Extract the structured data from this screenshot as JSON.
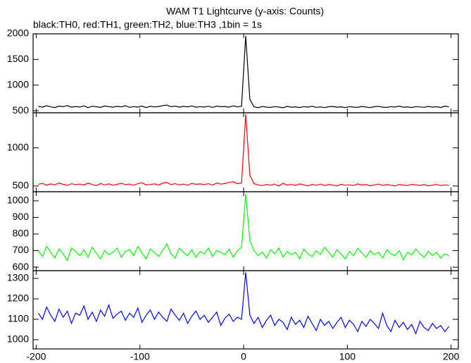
{
  "title": "WAM T1 Lightcurve (y-axis: Counts)",
  "subtitle": "black:TH0, red:TH1, green:TH2, blue:TH3 ,1bin = 1s",
  "chart_data": [
    {
      "type": "line",
      "color": "#000000",
      "xlim": [
        -203,
        207
      ],
      "ylim": [
        460,
        2000
      ],
      "xticks": [
        -200,
        -100,
        0,
        100,
        200
      ],
      "yticks": [
        500,
        1000,
        1500,
        2000
      ],
      "x": [
        -198,
        -194,
        -190,
        -186,
        -182,
        -178,
        -174,
        -170,
        -166,
        -162,
        -158,
        -154,
        -150,
        -146,
        -142,
        -138,
        -134,
        -130,
        -126,
        -122,
        -118,
        -114,
        -110,
        -106,
        -102,
        -98,
        -94,
        -90,
        -86,
        -82,
        -78,
        -74,
        -70,
        -66,
        -62,
        -58,
        -54,
        -50,
        -46,
        -42,
        -38,
        -34,
        -30,
        -26,
        -22,
        -18,
        -14,
        -10,
        -6,
        -2,
        2,
        6,
        10,
        14,
        18,
        22,
        26,
        30,
        34,
        38,
        42,
        46,
        50,
        54,
        58,
        62,
        66,
        70,
        74,
        78,
        82,
        86,
        90,
        94,
        98,
        102,
        106,
        110,
        114,
        118,
        122,
        126,
        130,
        134,
        138,
        142,
        146,
        150,
        154,
        158,
        162,
        166,
        170,
        174,
        178,
        182,
        186,
        190,
        194,
        198
      ],
      "values": [
        585,
        570,
        598,
        575,
        562,
        590,
        578,
        600,
        568,
        583,
        572,
        595,
        560,
        588,
        577,
        565,
        592,
        580,
        570,
        585,
        575,
        598,
        566,
        580,
        572,
        590,
        562,
        586,
        574,
        582,
        600,
        610,
        578,
        590,
        570,
        585,
        576,
        595,
        568,
        580,
        572,
        588,
        565,
        590,
        578,
        582,
        570,
        595,
        575,
        588,
        1960,
        720,
        575,
        560,
        582,
        570,
        565,
        580,
        572,
        558,
        585,
        568,
        576,
        562,
        580,
        570,
        588,
        566,
        574,
        560,
        578,
        584,
        568,
        575,
        562,
        580,
        570,
        565,
        584,
        572,
        560,
        578,
        586,
        570,
        565,
        580,
        572,
        590,
        568,
        576,
        562,
        580,
        574,
        566,
        585,
        570,
        578,
        562,
        590,
        575
      ]
    },
    {
      "type": "line",
      "color": "#ff0000",
      "xlim": [
        -203,
        207
      ],
      "ylim": [
        425,
        1460
      ],
      "xticks": [
        -200,
        -100,
        0,
        100,
        200
      ],
      "yticks": [
        500,
        1000
      ],
      "x": [
        -198,
        -194,
        -190,
        -186,
        -182,
        -178,
        -174,
        -170,
        -166,
        -162,
        -158,
        -154,
        -150,
        -146,
        -142,
        -138,
        -134,
        -130,
        -126,
        -122,
        -118,
        -114,
        -110,
        -106,
        -102,
        -98,
        -94,
        -90,
        -86,
        -82,
        -78,
        -74,
        -70,
        -66,
        -62,
        -58,
        -54,
        -50,
        -46,
        -42,
        -38,
        -34,
        -30,
        -26,
        -22,
        -18,
        -14,
        -10,
        -6,
        -2,
        2,
        6,
        10,
        14,
        18,
        22,
        26,
        30,
        34,
        38,
        42,
        46,
        50,
        54,
        58,
        62,
        66,
        70,
        74,
        78,
        82,
        86,
        90,
        94,
        98,
        102,
        106,
        110,
        114,
        118,
        122,
        126,
        130,
        134,
        138,
        142,
        146,
        150,
        154,
        158,
        162,
        166,
        170,
        174,
        178,
        182,
        186,
        190,
        194,
        198
      ],
      "values": [
        520,
        535,
        510,
        528,
        515,
        540,
        522,
        508,
        530,
        518,
        525,
        512,
        538,
        520,
        505,
        532,
        515,
        528,
        510,
        522,
        535,
        518,
        525,
        510,
        530,
        542,
        515,
        520,
        528,
        512,
        538,
        545,
        520,
        530,
        515,
        525,
        510,
        535,
        522,
        528,
        518,
        530,
        512,
        540,
        525,
        532,
        548,
        555,
        530,
        540,
        1440,
        640,
        530,
        515,
        505,
        520,
        510,
        525,
        500,
        535,
        512,
        520,
        508,
        528,
        515,
        502,
        520,
        510,
        525,
        505,
        518,
        512,
        500,
        522,
        510,
        515,
        505,
        528,
        512,
        520,
        502,
        515,
        525,
        508,
        518,
        510,
        500,
        520,
        512,
        505,
        522,
        515,
        508,
        518,
        502,
        512,
        520,
        505,
        515,
        508
      ]
    },
    {
      "type": "line",
      "color": "#00ff00",
      "xlim": [
        -203,
        207
      ],
      "ylim": [
        579,
        1055
      ],
      "xticks": [
        -200,
        -100,
        0,
        100,
        200
      ],
      "yticks": [
        600,
        700,
        800,
        900,
        1000
      ],
      "x": [
        -198,
        -194,
        -190,
        -186,
        -182,
        -178,
        -174,
        -170,
        -166,
        -162,
        -158,
        -154,
        -150,
        -146,
        -142,
        -138,
        -134,
        -130,
        -126,
        -122,
        -118,
        -114,
        -110,
        -106,
        -102,
        -98,
        -94,
        -90,
        -86,
        -82,
        -78,
        -74,
        -70,
        -66,
        -62,
        -58,
        -54,
        -50,
        -46,
        -42,
        -38,
        -34,
        -30,
        -26,
        -22,
        -18,
        -14,
        -10,
        -6,
        -2,
        2,
        6,
        10,
        14,
        18,
        22,
        26,
        30,
        34,
        38,
        42,
        46,
        50,
        54,
        58,
        62,
        66,
        70,
        74,
        78,
        82,
        86,
        90,
        94,
        98,
        102,
        106,
        110,
        114,
        118,
        122,
        126,
        130,
        134,
        138,
        142,
        146,
        150,
        154,
        158,
        162,
        166,
        170,
        174,
        178,
        182,
        186,
        190,
        194,
        198
      ],
      "values": [
        700,
        665,
        725,
        690,
        655,
        710,
        680,
        640,
        715,
        695,
        670,
        705,
        660,
        720,
        685,
        650,
        700,
        675,
        690,
        715,
        660,
        695,
        705,
        670,
        725,
        685,
        650,
        710,
        690,
        665,
        700,
        740,
        680,
        655,
        715,
        690,
        670,
        705,
        660,
        695,
        680,
        715,
        665,
        700,
        690,
        675,
        710,
        660,
        700,
        720,
        1040,
        760,
        700,
        670,
        690,
        655,
        705,
        680,
        715,
        660,
        695,
        675,
        690,
        650,
        710,
        680,
        665,
        700,
        675,
        720,
        690,
        660,
        705,
        680,
        650,
        695,
        670,
        715,
        685,
        660,
        700,
        675,
        690,
        655,
        705,
        680,
        670,
        700,
        645,
        690,
        675,
        710,
        680,
        660,
        695,
        670,
        690,
        655,
        680,
        670
      ]
    },
    {
      "type": "line",
      "color": "#0000ff",
      "xlim": [
        -203,
        207
      ],
      "ylim": [
        955,
        1338
      ],
      "xticks": [
        -200,
        -100,
        0,
        100,
        200
      ],
      "yticks": [
        1000,
        1100,
        1200,
        1300
      ],
      "x": [
        -198,
        -194,
        -190,
        -186,
        -182,
        -178,
        -174,
        -170,
        -166,
        -162,
        -158,
        -154,
        -150,
        -146,
        -142,
        -138,
        -134,
        -130,
        -126,
        -122,
        -118,
        -114,
        -110,
        -106,
        -102,
        -98,
        -94,
        -90,
        -86,
        -82,
        -78,
        -74,
        -70,
        -66,
        -62,
        -58,
        -54,
        -50,
        -46,
        -42,
        -38,
        -34,
        -30,
        -26,
        -22,
        -18,
        -14,
        -10,
        -6,
        -2,
        2,
        6,
        10,
        14,
        18,
        22,
        26,
        30,
        34,
        38,
        42,
        46,
        50,
        54,
        58,
        62,
        66,
        70,
        74,
        78,
        82,
        86,
        90,
        94,
        98,
        102,
        106,
        110,
        114,
        118,
        122,
        126,
        130,
        134,
        138,
        142,
        146,
        150,
        154,
        158,
        162,
        166,
        170,
        174,
        178,
        182,
        186,
        190,
        194,
        198
      ],
      "values": [
        1130,
        1100,
        1160,
        1120,
        1090,
        1150,
        1110,
        1140,
        1080,
        1130,
        1120,
        1165,
        1100,
        1135,
        1090,
        1145,
        1115,
        1170,
        1105,
        1125,
        1140,
        1095,
        1130,
        1110,
        1155,
        1085,
        1120,
        1145,
        1100,
        1135,
        1110,
        1090,
        1150,
        1120,
        1095,
        1130,
        1080,
        1115,
        1140,
        1100,
        1120,
        1085,
        1110,
        1135,
        1070,
        1105,
        1125,
        1090,
        1110,
        1100,
        1330,
        1120,
        1080,
        1110,
        1060,
        1095,
        1120,
        1070,
        1100,
        1085,
        1050,
        1110,
        1075,
        1095,
        1060,
        1115,
        1080,
        1045,
        1100,
        1070,
        1090,
        1055,
        1085,
        1110,
        1060,
        1095,
        1075,
        1040,
        1090,
        1065,
        1100,
        1080,
        1055,
        1130,
        1070,
        1040,
        1095,
        1060,
        1085,
        1050,
        1075,
        1030,
        1090,
        1060,
        1045,
        1080,
        1055,
        1070,
        1040,
        1065
      ]
    }
  ]
}
